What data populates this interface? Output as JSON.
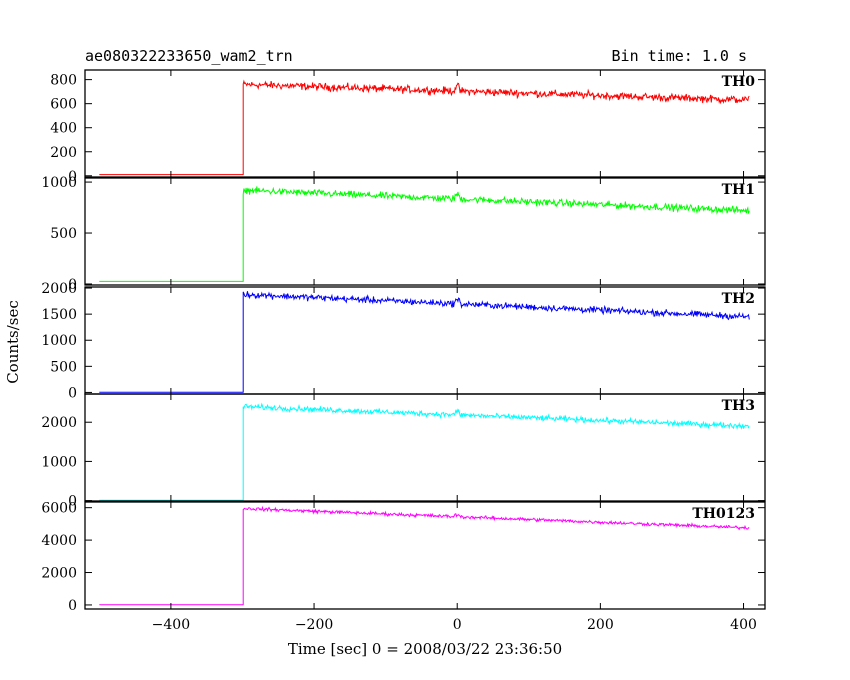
{
  "header": {
    "title": "ae080322233650_wam2_trn",
    "bin_time": "Bin time: 1.0 s"
  },
  "chart_data": {
    "type": "line",
    "xlabel": "Time [sec] 0 = 2008/03/22 23:36:50",
    "ylabel": "Counts/sec",
    "xlim": [
      -520,
      430
    ],
    "x_ticks": [
      -400,
      -200,
      0,
      200,
      400
    ],
    "x_tick_labels": [
      "−400",
      "−200",
      "0",
      "200",
      "400"
    ],
    "trigger_x": -299,
    "x_start": -500,
    "x_end": 408,
    "grid": false,
    "panels": [
      {
        "name": "TH0",
        "color": "#ff0000",
        "ylim": [
          -10,
          880
        ],
        "y_ticks": [
          0,
          200,
          400,
          600,
          800
        ],
        "y_tick_labels": [
          "0",
          "200",
          "400",
          "600",
          "800"
        ],
        "pre_level": 10,
        "post_start": 760,
        "post_end": 630,
        "noise": 28
      },
      {
        "name": "TH1",
        "color": "#00ff00",
        "ylim": [
          -10,
          1040
        ],
        "y_ticks": [
          0,
          500,
          1000
        ],
        "y_tick_labels": [
          "0",
          "500",
          "1000"
        ],
        "pre_level": 25,
        "post_start": 920,
        "post_end": 720,
        "noise": 30
      },
      {
        "name": "TH2",
        "color": "#0000ff",
        "ylim": [
          -30,
          2020
        ],
        "y_ticks": [
          0,
          500,
          1000,
          1500,
          2000
        ],
        "y_tick_labels": [
          "0",
          "500",
          "1000",
          "1500",
          "2000"
        ],
        "pre_level": 5,
        "post_start": 1880,
        "post_end": 1450,
        "noise": 55
      },
      {
        "name": "TH3",
        "color": "#00ffff",
        "ylim": [
          -10,
          2720
        ],
        "y_ticks": [
          0,
          1000,
          2000
        ],
        "y_tick_labels": [
          "0",
          "1000",
          "2000"
        ],
        "pre_level": 10,
        "post_start": 2400,
        "post_end": 1900,
        "noise": 60
      },
      {
        "name": "TH0123",
        "color": "#ff00ff",
        "ylim": [
          -250,
          6350
        ],
        "y_ticks": [
          0,
          2000,
          4000,
          6000
        ],
        "y_tick_labels": [
          "0",
          "2000",
          "4000",
          "6000"
        ],
        "pre_level": 10,
        "post_start": 5950,
        "post_end": 4750,
        "noise": 90
      }
    ]
  }
}
